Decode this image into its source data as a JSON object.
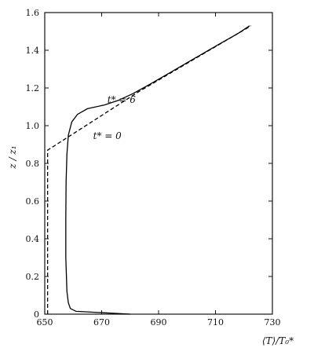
{
  "chart_data": {
    "type": "line",
    "xlabel": "⟨T⟩/T₀*",
    "ylabel": "z / z₁",
    "xlim": [
      650,
      730
    ],
    "ylim": [
      0,
      1.6
    ],
    "x_ticks": [
      650,
      670,
      690,
      710,
      730
    ],
    "x_tick_labels": [
      "650",
      "670",
      "690",
      "710",
      "730"
    ],
    "y_ticks": [
      0,
      0.2,
      0.4,
      0.6,
      0.8,
      1.0,
      1.2,
      1.4,
      1.6
    ],
    "y_tick_labels": [
      "0",
      "0.2",
      "0.4",
      "0.6",
      "0.8",
      "1.0",
      "1.2",
      "1.4",
      "1.6"
    ],
    "grid": false,
    "series": [
      {
        "name": "t* = 6",
        "style": "solid",
        "color": "#000000",
        "points": [
          [
            680,
            0.0
          ],
          [
            670,
            0.008
          ],
          [
            661,
            0.015
          ],
          [
            659,
            0.03
          ],
          [
            658.3,
            0.06
          ],
          [
            657.8,
            0.12
          ],
          [
            657.4,
            0.3
          ],
          [
            657.4,
            0.5
          ],
          [
            657.5,
            0.7
          ],
          [
            657.8,
            0.85
          ],
          [
            658.3,
            0.95
          ],
          [
            659.5,
            1.02
          ],
          [
            661.5,
            1.06
          ],
          [
            665,
            1.09
          ],
          [
            671,
            1.11
          ],
          [
            676,
            1.135
          ],
          [
            681,
            1.17
          ],
          [
            687,
            1.22
          ],
          [
            695,
            1.29
          ],
          [
            703,
            1.36
          ],
          [
            711,
            1.43
          ],
          [
            718,
            1.49
          ],
          [
            722,
            1.53
          ]
        ]
      },
      {
        "name": "t* = 0",
        "style": "dashed",
        "color": "#000000",
        "points": [
          [
            651,
            0.0
          ],
          [
            651,
            0.87
          ],
          [
            683,
            1.18
          ],
          [
            722.5,
            1.53
          ]
        ]
      }
    ],
    "annotations": [
      {
        "text": "t* = 6",
        "x": 672,
        "y": 1.12
      },
      {
        "text": "t* = 0",
        "x": 667,
        "y": 0.93
      }
    ]
  }
}
